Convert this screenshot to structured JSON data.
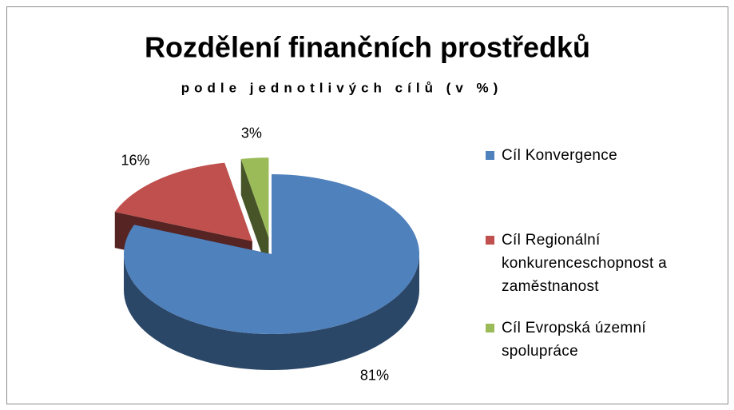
{
  "chart_data": {
    "type": "pie3d",
    "title": "Rozdělení finančních prostředků",
    "subtitle": "podle jednotlivých cílů (v %)",
    "categories": [
      "Cíl Konvergence",
      "Cíl Regionální konkurenceschopnost a zaměstnanost",
      "Cíl Evropská územní spolupráce"
    ],
    "values": [
      81,
      16,
      3
    ],
    "value_labels": [
      "81%",
      "16%",
      "3%"
    ],
    "colors": [
      "#4f81bd",
      "#c0504d",
      "#9bbb59"
    ],
    "legend": "right"
  }
}
